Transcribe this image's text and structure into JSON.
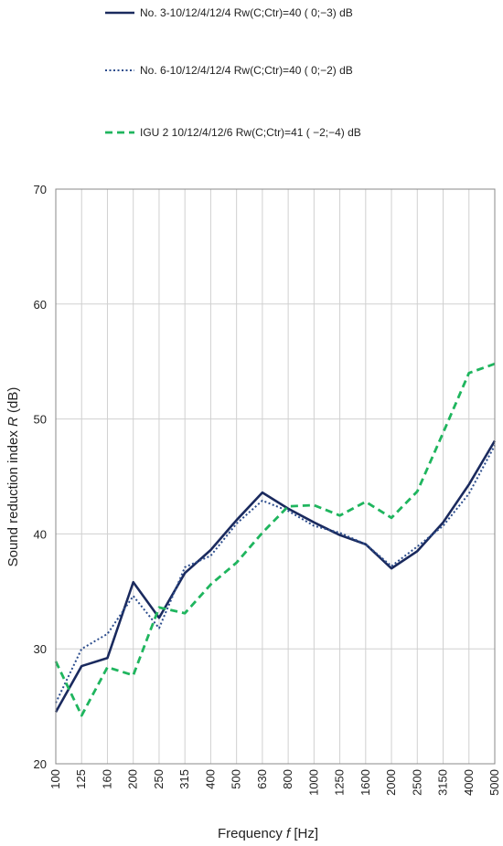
{
  "chart_data": {
    "type": "line",
    "xlabel": "Frequency f [Hz]",
    "xlabel_prefix": "Frequency ",
    "xlabel_var": "f",
    "xlabel_suffix": " [Hz]",
    "ylabel": "Sound reduction index R (dB)",
    "ylabel_prefix": "Sound reduction index ",
    "ylabel_var": "R",
    "ylabel_suffix": " (dB)",
    "ylim": [
      20,
      70
    ],
    "yticks": [
      20,
      30,
      40,
      50,
      60,
      70
    ],
    "grid": true,
    "legend_position": "top",
    "categories": [
      "100",
      "125",
      "160",
      "200",
      "250",
      "315",
      "400",
      "500",
      "630",
      "800",
      "1000",
      "1250",
      "1600",
      "2000",
      "2500",
      "3150",
      "4000",
      "5000"
    ],
    "series": [
      {
        "name": "No. 3-10/12/4/12/4 Rw(C;Ctr)=40 ( 0;−3) dB",
        "color": "#1a2a5e",
        "style": "solid",
        "values": [
          24.5,
          28.5,
          29.2,
          35.8,
          32.7,
          36.6,
          38.6,
          41.2,
          43.6,
          42.2,
          41.0,
          39.9,
          39.1,
          37.0,
          38.5,
          41.0,
          44.3,
          48.1
        ]
      },
      {
        "name": "No. 6-10/12/4/12/4 Rw(C;Ctr)=40 ( 0;−2) dB",
        "color": "#2b4c8c",
        "style": "dotted",
        "values": [
          25.3,
          30.0,
          31.3,
          34.6,
          31.8,
          37.1,
          38.1,
          40.9,
          42.9,
          42.0,
          40.7,
          40.1,
          39.1,
          37.2,
          38.9,
          40.7,
          43.5,
          47.7
        ]
      },
      {
        "name": "IGU 2 10/12/4/12/6 Rw(C;Ctr)=41 ( −2;−4) dB",
        "color": "#1fb55e",
        "style": "dashed",
        "values": [
          28.9,
          24.2,
          28.4,
          27.7,
          33.6,
          33.1,
          35.6,
          37.5,
          40.1,
          42.4,
          42.5,
          41.6,
          42.8,
          41.4,
          43.7,
          48.8,
          54.0,
          54.8
        ]
      }
    ]
  }
}
